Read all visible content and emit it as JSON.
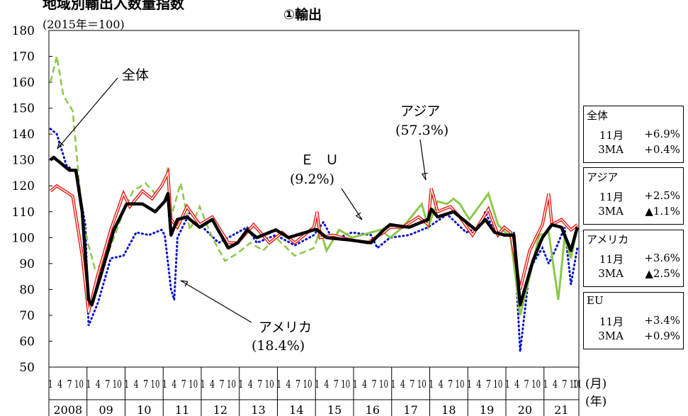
{
  "header": {
    "title": "地域別輸出入数量指数",
    "subtitle": "①輸出",
    "unit": "(2015年＝100)"
  },
  "colors": {
    "total": "#000000",
    "asia": "#e8170f",
    "america": "#0a14c8",
    "eu": "#8cc84b"
  },
  "chart_data": {
    "type": "line",
    "x_start": "2008-01",
    "x_end": "2021-11",
    "frequency": "monthly",
    "ylim": [
      50,
      180
    ],
    "yticks": [
      50,
      60,
      70,
      80,
      90,
      100,
      110,
      120,
      130,
      140,
      150,
      160,
      170,
      180
    ],
    "month_tick_labels": [
      "1",
      "4",
      "7",
      "10"
    ],
    "last_month_label": "11",
    "x_unit_month": "(月)",
    "x_unit_year": "(年)",
    "year_labels": [
      "2008",
      "09",
      "10",
      "11",
      "12",
      "13",
      "14",
      "15",
      "16",
      "17",
      "18",
      "19",
      "20",
      "21"
    ],
    "grid": false,
    "series": [
      {
        "key": "asia",
        "name": "アジア",
        "share": "(57.3%)",
        "style": "red-double-line",
        "anchors": [
          [
            "2008-01",
            118
          ],
          [
            "2008-03",
            120
          ],
          [
            "2008-08",
            116
          ],
          [
            "2008-11",
            93
          ],
          [
            "2009-01",
            71
          ],
          [
            "2009-04",
            86
          ],
          [
            "2009-08",
            103
          ],
          [
            "2009-12",
            117
          ],
          [
            "2010-02",
            112
          ],
          [
            "2010-06",
            118
          ],
          [
            "2010-09",
            115
          ],
          [
            "2010-12",
            120
          ],
          [
            "2011-02",
            125
          ],
          [
            "2011-03",
            107
          ],
          [
            "2011-05",
            104
          ],
          [
            "2011-08",
            112
          ],
          [
            "2011-12",
            105
          ],
          [
            "2012-04",
            108
          ],
          [
            "2012-09",
            98
          ],
          [
            "2012-12",
            98
          ],
          [
            "2013-05",
            105
          ],
          [
            "2013-10",
            98
          ],
          [
            "2014-02",
            102
          ],
          [
            "2014-06",
            98
          ],
          [
            "2014-12",
            104
          ],
          [
            "2015-01",
            110
          ],
          [
            "2015-02",
            100
          ],
          [
            "2015-06",
            101
          ],
          [
            "2015-12",
            99
          ],
          [
            "2016-05",
            98
          ],
          [
            "2016-10",
            102
          ],
          [
            "2016-12",
            104
          ],
          [
            "2017-04",
            104
          ],
          [
            "2017-09",
            108
          ],
          [
            "2017-12",
            105
          ],
          [
            "2018-01",
            119
          ],
          [
            "2018-03",
            110
          ],
          [
            "2018-07",
            112
          ],
          [
            "2018-10",
            108
          ],
          [
            "2019-02",
            101
          ],
          [
            "2019-07",
            111
          ],
          [
            "2019-10",
            101
          ],
          [
            "2019-12",
            104
          ],
          [
            "2020-02",
            102
          ],
          [
            "2020-05",
            80
          ],
          [
            "2020-08",
            95
          ],
          [
            "2020-12",
            105
          ],
          [
            "2021-02",
            117
          ],
          [
            "2021-03",
            105
          ],
          [
            "2021-06",
            107
          ],
          [
            "2021-09",
            103
          ],
          [
            "2021-11",
            105
          ]
        ]
      },
      {
        "key": "america",
        "name": "アメリカ",
        "share": "(18.4%)",
        "style": "blue-dotted",
        "anchors": [
          [
            "2008-01",
            142
          ],
          [
            "2008-03",
            140
          ],
          [
            "2008-06",
            128
          ],
          [
            "2008-09",
            125
          ],
          [
            "2008-12",
            105
          ],
          [
            "2009-01",
            66
          ],
          [
            "2009-04",
            75
          ],
          [
            "2009-08",
            92
          ],
          [
            "2009-12",
            93
          ],
          [
            "2010-04",
            102
          ],
          [
            "2010-08",
            101
          ],
          [
            "2010-12",
            103
          ],
          [
            "2011-01",
            101
          ],
          [
            "2011-03",
            80
          ],
          [
            "2011-04",
            76
          ],
          [
            "2011-05",
            100
          ],
          [
            "2011-09",
            110
          ],
          [
            "2012-01",
            104
          ],
          [
            "2012-06",
            98
          ],
          [
            "2012-12",
            102
          ],
          [
            "2013-03",
            104
          ],
          [
            "2013-06",
            98
          ],
          [
            "2013-12",
            101
          ],
          [
            "2014-06",
            97
          ],
          [
            "2014-12",
            101
          ],
          [
            "2015-03",
            106
          ],
          [
            "2015-06",
            99
          ],
          [
            "2015-12",
            102
          ],
          [
            "2016-06",
            101
          ],
          [
            "2016-08",
            96
          ],
          [
            "2016-12",
            100
          ],
          [
            "2017-06",
            101
          ],
          [
            "2017-12",
            104
          ],
          [
            "2018-06",
            109
          ],
          [
            "2018-12",
            102
          ],
          [
            "2019-04",
            104
          ],
          [
            "2019-06",
            110
          ],
          [
            "2019-09",
            102
          ],
          [
            "2019-12",
            101
          ],
          [
            "2020-03",
            102
          ],
          [
            "2020-05",
            56
          ],
          [
            "2020-08",
            88
          ],
          [
            "2020-12",
            96
          ],
          [
            "2021-02",
            90
          ],
          [
            "2021-04",
            95
          ],
          [
            "2021-07",
            104
          ],
          [
            "2021-09",
            82
          ],
          [
            "2021-11",
            96
          ]
        ]
      },
      {
        "key": "eu",
        "name": "ＥＵ",
        "share": "(9.2%)",
        "style": "green-dashed-then-solid",
        "dash_until": "2015-01",
        "anchors": [
          [
            "2008-01",
            160
          ],
          [
            "2008-03",
            170
          ],
          [
            "2008-05",
            155
          ],
          [
            "2008-08",
            149
          ],
          [
            "2008-11",
            108
          ],
          [
            "2009-01",
            97
          ],
          [
            "2009-03",
            88
          ],
          [
            "2009-06",
            90
          ],
          [
            "2009-09",
            100
          ],
          [
            "2009-12",
            110
          ],
          [
            "2010-03",
            118
          ],
          [
            "2010-07",
            121
          ],
          [
            "2010-10",
            117
          ],
          [
            "2011-01",
            122
          ],
          [
            "2011-02",
            127
          ],
          [
            "2011-03",
            108
          ],
          [
            "2011-06",
            121
          ],
          [
            "2011-09",
            103
          ],
          [
            "2011-12",
            112
          ],
          [
            "2012-04",
            100
          ],
          [
            "2012-08",
            91
          ],
          [
            "2012-12",
            94
          ],
          [
            "2013-04",
            98
          ],
          [
            "2013-08",
            95
          ],
          [
            "2013-12",
            100
          ],
          [
            "2014-06",
            93
          ],
          [
            "2014-12",
            96
          ],
          [
            "2015-02",
            103
          ],
          [
            "2015-04",
            95
          ],
          [
            "2015-08",
            103
          ],
          [
            "2015-12",
            100
          ],
          [
            "2016-06",
            102
          ],
          [
            "2016-09",
            103
          ],
          [
            "2016-12",
            100
          ],
          [
            "2017-04",
            104
          ],
          [
            "2017-08",
            110
          ],
          [
            "2017-10",
            113
          ],
          [
            "2017-12",
            104
          ],
          [
            "2018-03",
            114
          ],
          [
            "2018-06",
            113
          ],
          [
            "2018-08",
            115
          ],
          [
            "2018-10",
            113
          ],
          [
            "2019-01",
            107
          ],
          [
            "2019-04",
            112
          ],
          [
            "2019-07",
            117
          ],
          [
            "2019-10",
            105
          ],
          [
            "2020-02",
            100
          ],
          [
            "2020-05",
            70
          ],
          [
            "2020-08",
            85
          ],
          [
            "2020-11",
            101
          ],
          [
            "2021-02",
            102
          ],
          [
            "2021-05",
            76
          ],
          [
            "2021-07",
            100
          ],
          [
            "2021-09",
            92
          ],
          [
            "2021-11",
            104
          ]
        ]
      },
      {
        "key": "total",
        "name": "全体",
        "share": "",
        "style": "black-bold",
        "anchors": [
          [
            "2008-01",
            130
          ],
          [
            "2008-02",
            131
          ],
          [
            "2008-04",
            129
          ],
          [
            "2008-07",
            126
          ],
          [
            "2008-09",
            126
          ],
          [
            "2008-11",
            110
          ],
          [
            "2009-01",
            76
          ],
          [
            "2009-02",
            74
          ],
          [
            "2009-05",
            86
          ],
          [
            "2009-09",
            103
          ],
          [
            "2010-01",
            113
          ],
          [
            "2010-06",
            113
          ],
          [
            "2010-10",
            110
          ],
          [
            "2011-01",
            114
          ],
          [
            "2011-02",
            117
          ],
          [
            "2011-03",
            101
          ],
          [
            "2011-05",
            107
          ],
          [
            "2011-08",
            108
          ],
          [
            "2011-12",
            104
          ],
          [
            "2012-04",
            107
          ],
          [
            "2012-09",
            96
          ],
          [
            "2012-12",
            98
          ],
          [
            "2013-03",
            103
          ],
          [
            "2013-06",
            100
          ],
          [
            "2013-12",
            103
          ],
          [
            "2014-04",
            100
          ],
          [
            "2014-12",
            103
          ],
          [
            "2015-01",
            103
          ],
          [
            "2015-04",
            100
          ],
          [
            "2015-12",
            99
          ],
          [
            "2016-06",
            98
          ],
          [
            "2016-10",
            103
          ],
          [
            "2016-12",
            105
          ],
          [
            "2017-06",
            104
          ],
          [
            "2017-12",
            107
          ],
          [
            "2018-01",
            111
          ],
          [
            "2018-03",
            108
          ],
          [
            "2018-08",
            110
          ],
          [
            "2018-12",
            106
          ],
          [
            "2019-03",
            103
          ],
          [
            "2019-06",
            107
          ],
          [
            "2019-09",
            102
          ],
          [
            "2019-12",
            101
          ],
          [
            "2020-03",
            101
          ],
          [
            "2020-05",
            74
          ],
          [
            "2020-09",
            91
          ],
          [
            "2020-12",
            100
          ],
          [
            "2021-03",
            105
          ],
          [
            "2021-06",
            104
          ],
          [
            "2021-09",
            95
          ],
          [
            "2021-11",
            104
          ]
        ]
      }
    ],
    "annotations": [
      {
        "key": "total",
        "label": "全体",
        "share": ""
      },
      {
        "key": "america",
        "label": "アメリカ",
        "share": "(18.4%)"
      },
      {
        "key": "eu",
        "label": "ＥＵ",
        "share": "(9.2%)"
      },
      {
        "key": "asia",
        "label": "アジア",
        "share": "(57.3%)"
      }
    ],
    "summary_boxes": [
      {
        "name": "全体",
        "rows": [
          {
            "label": "11月",
            "value": "+6.9%"
          },
          {
            "label": "3MA",
            "value": "+0.4%"
          }
        ]
      },
      {
        "name": "アジア",
        "rows": [
          {
            "label": "11月",
            "value": "+2.5%"
          },
          {
            "label": "3MA",
            "value": "▲1.1%"
          }
        ]
      },
      {
        "name": "アメリカ",
        "rows": [
          {
            "label": "11月",
            "value": "+3.6%"
          },
          {
            "label": "3MA",
            "value": "▲2.5%"
          }
        ]
      },
      {
        "name": "EU",
        "rows": [
          {
            "label": "11月",
            "value": "+3.4%"
          },
          {
            "label": "3MA",
            "value": "+0.9%"
          }
        ]
      }
    ]
  }
}
